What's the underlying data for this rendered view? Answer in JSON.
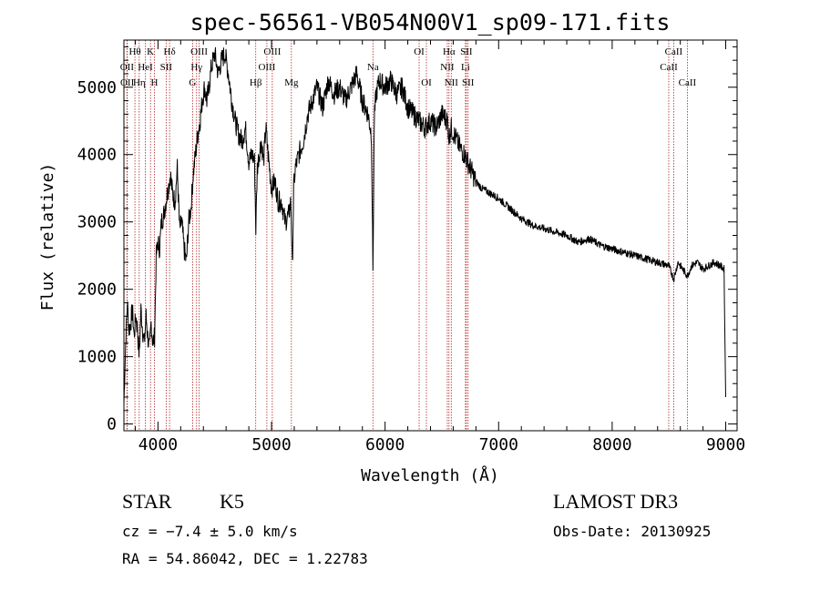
{
  "chart_data": {
    "type": "line",
    "title": "spec-56561-VB054N00V1_sp09-171.fits",
    "xlabel": "Wavelength (Å)",
    "ylabel": "Flux (relative)",
    "xlim": [
      3700,
      9100
    ],
    "ylim": [
      -100,
      5700
    ],
    "xticks": [
      4000,
      5000,
      6000,
      7000,
      8000,
      9000
    ],
    "xtick_labels": [
      "4000",
      "5000",
      "6000",
      "7000",
      "8000",
      "9000"
    ],
    "yticks": [
      0,
      1000,
      2000,
      3000,
      4000,
      5000
    ],
    "ytick_labels": [
      "0",
      "1000",
      "2000",
      "3000",
      "4000",
      "5000"
    ],
    "series": [
      {
        "name": "spectrum",
        "x": [
          3700,
          3715,
          3730,
          3745,
          3760,
          3775,
          3790,
          3805,
          3820,
          3835,
          3850,
          3865,
          3880,
          3895,
          3910,
          3925,
          3940,
          3955,
          3970,
          3985,
          4000,
          4015,
          4030,
          4050,
          4070,
          4090,
          4110,
          4130,
          4150,
          4170,
          4190,
          4210,
          4230,
          4250,
          4270,
          4290,
          4310,
          4330,
          4350,
          4370,
          4390,
          4410,
          4430,
          4450,
          4470,
          4500,
          4530,
          4560,
          4590,
          4620,
          4650,
          4680,
          4710,
          4740,
          4770,
          4800,
          4830,
          4850,
          4862,
          4875,
          4890,
          4910,
          4930,
          4950,
          4970,
          5000,
          5030,
          5060,
          5090,
          5120,
          5150,
          5170,
          5184,
          5195,
          5210,
          5240,
          5280,
          5320,
          5360,
          5400,
          5450,
          5500,
          5550,
          5600,
          5650,
          5700,
          5750,
          5800,
          5850,
          5880,
          5893,
          5905,
          5920,
          5950,
          6000,
          6050,
          6100,
          6150,
          6200,
          6250,
          6300,
          6350,
          6400,
          6450,
          6500,
          6550,
          6563,
          6580,
          6620,
          6660,
          6700,
          6750,
          6800,
          6850,
          6900,
          6950,
          7000,
          7100,
          7200,
          7300,
          7400,
          7500,
          7600,
          7700,
          7800,
          7900,
          8000,
          8100,
          8200,
          8300,
          8400,
          8498,
          8542,
          8580,
          8620,
          8662,
          8700,
          8750,
          8800,
          8850,
          8900,
          8950,
          8985,
          8995,
          9000
        ],
        "y": [
          300,
          1200,
          1800,
          1400,
          1500,
          1700,
          1300,
          1600,
          1400,
          1000,
          1700,
          1400,
          1200,
          1600,
          1300,
          1100,
          1500,
          1200,
          1300,
          2500,
          2700,
          2600,
          3000,
          3100,
          3300,
          3500,
          3700,
          3400,
          3300,
          3800,
          2900,
          3000,
          2600,
          2400,
          3000,
          3200,
          3700,
          4000,
          4300,
          4500,
          4800,
          5000,
          4800,
          5000,
          5300,
          5500,
          5200,
          5400,
          5500,
          5200,
          4800,
          4500,
          4300,
          4200,
          4400,
          3900,
          4000,
          3900,
          2900,
          3800,
          4000,
          4200,
          3900,
          4400,
          4000,
          3500,
          3600,
          3300,
          3300,
          3000,
          3100,
          3300,
          2300,
          3500,
          3800,
          4000,
          4200,
          4600,
          4800,
          5000,
          4700,
          5100,
          4900,
          5000,
          4800,
          5000,
          5200,
          4800,
          4600,
          4300,
          2300,
          4500,
          4900,
          5100,
          5000,
          5100,
          4900,
          5000,
          4700,
          4600,
          4500,
          4400,
          4500,
          4400,
          4600,
          4500,
          4250,
          4400,
          4250,
          4100,
          4000,
          3800,
          3600,
          3500,
          3450,
          3400,
          3350,
          3200,
          3050,
          2950,
          2900,
          2850,
          2800,
          2700,
          2750,
          2650,
          2600,
          2550,
          2500,
          2450,
          2400,
          2350,
          2150,
          2400,
          2300,
          2200,
          2350,
          2400,
          2300,
          2350,
          2400,
          2350,
          2300,
          1000,
          400
        ]
      }
    ],
    "spectral_lines": [
      {
        "label": "Hθ",
        "x": 3797,
        "row": 0
      },
      {
        "label": "OII",
        "x": 3727,
        "row": 1
      },
      {
        "label": "OII",
        "x": 3729,
        "row": 2
      },
      {
        "label": "Hη",
        "x": 3835,
        "row": 2
      },
      {
        "label": "K",
        "x": 3934,
        "row": 0
      },
      {
        "label": "HeI",
        "x": 3889,
        "row": 1
      },
      {
        "label": "SII",
        "x": 4072,
        "row": 1
      },
      {
        "label": "H",
        "x": 3969,
        "row": 2
      },
      {
        "label": "Hδ",
        "x": 4102,
        "row": 0
      },
      {
        "label": "OIII",
        "x": 4363,
        "row": 0
      },
      {
        "label": "Hγ",
        "x": 4340,
        "row": 1
      },
      {
        "label": "G",
        "x": 4305,
        "row": 2
      },
      {
        "label": "Hβ",
        "x": 4861,
        "row": 2
      },
      {
        "label": "OIII",
        "x": 5007,
        "row": 0
      },
      {
        "label": "OIII",
        "x": 4959,
        "row": 1
      },
      {
        "label": "Mg",
        "x": 5175,
        "row": 2
      },
      {
        "label": "Na",
        "x": 5893,
        "row": 1
      },
      {
        "label": "OI",
        "x": 6300,
        "row": 0
      },
      {
        "label": "OI",
        "x": 6364,
        "row": 2
      },
      {
        "label": "Hα",
        "x": 6563,
        "row": 0
      },
      {
        "label": "SII",
        "x": 6716,
        "row": 0
      },
      {
        "label": "NII",
        "x": 6548,
        "row": 1
      },
      {
        "label": "Li",
        "x": 6708,
        "row": 1
      },
      {
        "label": "NII",
        "x": 6583,
        "row": 2
      },
      {
        "label": "SII",
        "x": 6731,
        "row": 2
      },
      {
        "label": "CaII",
        "x": 8542,
        "row": 0
      },
      {
        "label": "CaII",
        "x": 8498,
        "row": 1
      },
      {
        "label": "CaII",
        "x": 8662,
        "row": 2
      }
    ]
  },
  "info": {
    "object_class": "STAR",
    "subclass": "K5",
    "survey": "LAMOST DR3",
    "cz": "cz = −7.4 ± 5.0 km/s",
    "obs_date": "Obs-Date: 20130925",
    "coords": "RA =  54.86042, DEC =   1.22783"
  },
  "colors": {
    "spectrum": "#000000",
    "line_markers": "#b22222",
    "axes": "#000000"
  }
}
